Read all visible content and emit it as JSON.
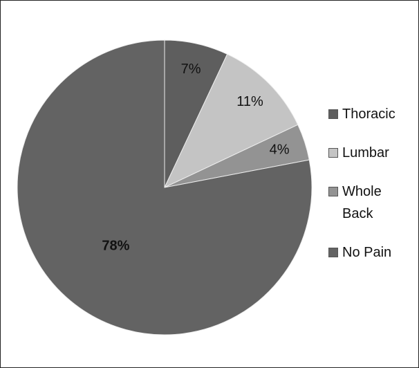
{
  "chart_data": {
    "type": "pie",
    "categories": [
      "Thoracic",
      "Lumbar",
      "Whole Back",
      "No Pain"
    ],
    "values": [
      7,
      11,
      4,
      78
    ],
    "value_labels": [
      "7%",
      "11%",
      "4%",
      "78%"
    ],
    "colors": [
      "#5e5e5e",
      "#c4c4c4",
      "#939393",
      "#636363"
    ],
    "legend": "right"
  }
}
